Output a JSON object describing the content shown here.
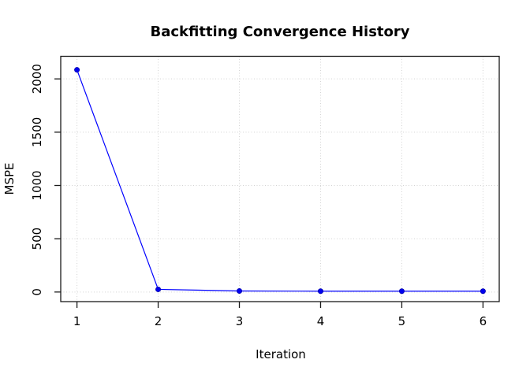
{
  "chart_data": {
    "type": "line",
    "title": "Backfitting Convergence History",
    "xlabel": "Iteration",
    "ylabel": "MSPE",
    "x": [
      1,
      2,
      3,
      4,
      5,
      6
    ],
    "y": [
      2085,
      25,
      10,
      8,
      8,
      8
    ],
    "series_name": "MSPE",
    "xtick_labels": [
      "1",
      "2",
      "3",
      "4",
      "5",
      "6"
    ],
    "xtick_values": [
      1,
      2,
      3,
      4,
      5,
      6
    ],
    "ytick_labels": [
      "0",
      "500",
      "1000",
      "1500",
      "2000"
    ],
    "ytick_values": [
      0,
      500,
      1000,
      1500,
      2000
    ],
    "xlim": [
      0.8,
      6.2
    ],
    "ylim": [
      -90,
      2212
    ],
    "grid": {
      "style": "dotted",
      "color": "#D3D3D3",
      "vertical": true,
      "horizontal": true
    },
    "legend": "none",
    "line_color": "#0000FF",
    "marker": "filled-circle",
    "marker_color": "#0000EE",
    "axis_color": "#1a1a1a",
    "background": "#FFFFFF"
  }
}
